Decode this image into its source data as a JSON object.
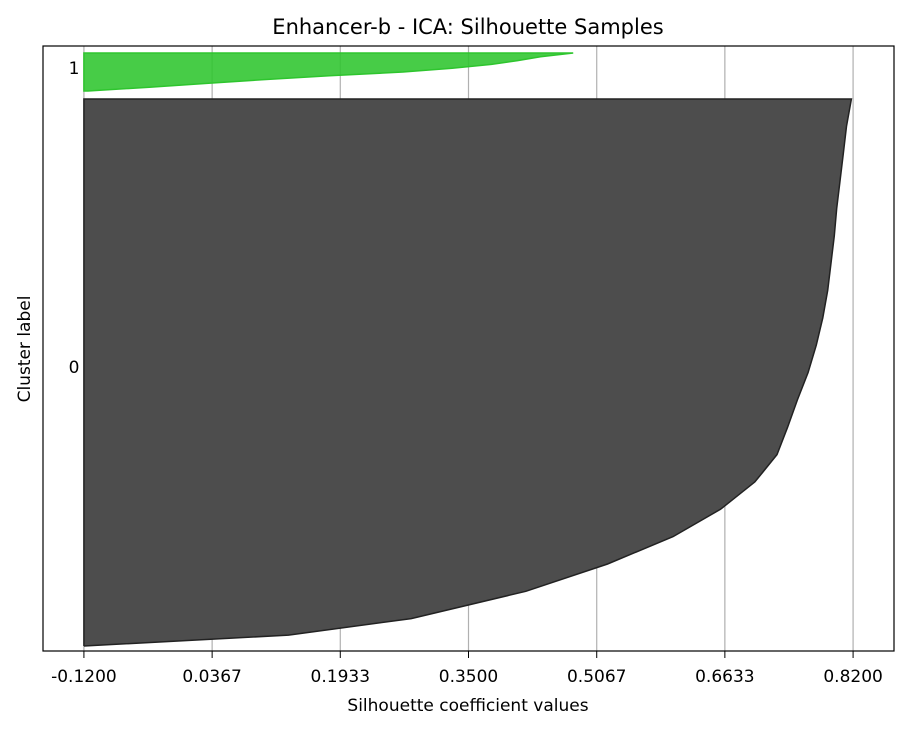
{
  "chart_data": {
    "type": "area",
    "title": "Enhancer-b - ICA: Silhouette Samples",
    "xlabel": "Silhouette coefficient values",
    "ylabel": "Cluster label",
    "xlim": [
      -0.17,
      0.87
    ],
    "x_ticks": [
      "-0.1200",
      "0.0367",
      "0.1933",
      "0.3500",
      "0.5067",
      "0.6633",
      "0.8200"
    ],
    "x_tick_values": [
      -0.12,
      0.0367,
      0.1933,
      0.35,
      0.5067,
      0.6633,
      0.82
    ],
    "grid": "vertical",
    "series": [
      {
        "name": "0",
        "color": "#4d4d4d",
        "fraction_values": [
          [
            0.0,
            0.818
          ],
          [
            0.05,
            0.812
          ],
          [
            0.1,
            0.808
          ],
          [
            0.15,
            0.804
          ],
          [
            0.2,
            0.8
          ],
          [
            0.25,
            0.797
          ],
          [
            0.3,
            0.793
          ],
          [
            0.35,
            0.789
          ],
          [
            0.4,
            0.783
          ],
          [
            0.45,
            0.775
          ],
          [
            0.5,
            0.765
          ],
          [
            0.55,
            0.752
          ],
          [
            0.6,
            0.74
          ],
          [
            0.65,
            0.727
          ],
          [
            0.7,
            0.7
          ],
          [
            0.75,
            0.658
          ],
          [
            0.8,
            0.6
          ],
          [
            0.85,
            0.52
          ],
          [
            0.9,
            0.42
          ],
          [
            0.95,
            0.28
          ],
          [
            0.98,
            0.13
          ],
          [
            1.0,
            -0.12
          ]
        ]
      },
      {
        "name": "1",
        "color": "#2ec52e",
        "fraction_values": [
          [
            0.0,
            0.478
          ],
          [
            0.1,
            0.438
          ],
          [
            0.2,
            0.41
          ],
          [
            0.3,
            0.378
          ],
          [
            0.4,
            0.33
          ],
          [
            0.5,
            0.27
          ],
          [
            0.6,
            0.18
          ],
          [
            0.7,
            0.1
          ],
          [
            0.8,
            0.03
          ],
          [
            0.9,
            -0.04
          ],
          [
            1.0,
            -0.115
          ]
        ]
      }
    ]
  }
}
